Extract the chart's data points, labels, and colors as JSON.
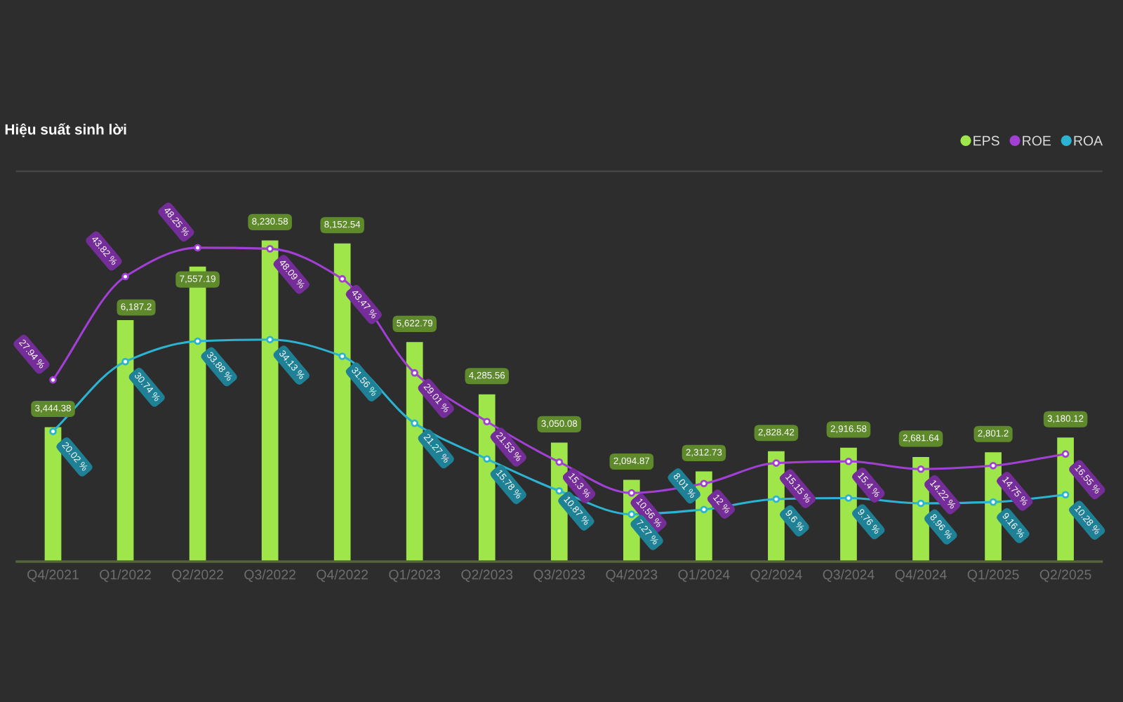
{
  "chart_data": {
    "type": "bar",
    "title": "Hiệu suất sinh lời",
    "categories": [
      "Q4/2021",
      "Q1/2022",
      "Q2/2022",
      "Q3/2022",
      "Q4/2022",
      "Q1/2023",
      "Q2/2023",
      "Q3/2023",
      "Q4/2023",
      "Q1/2024",
      "Q2/2024",
      "Q3/2024",
      "Q4/2024",
      "Q1/2025",
      "Q2/2025"
    ],
    "series": [
      {
        "name": "EPS",
        "color": "#9fe64a",
        "values": [
          3444.38,
          6187.2,
          7557.19,
          8230.58,
          8152.54,
          5622.79,
          4285.56,
          3050.08,
          2094.87,
          2312.73,
          2828.42,
          2916.58,
          2681.64,
          2801.2,
          3180.12
        ],
        "value_labels": [
          "3,444.38",
          "6,187.2",
          "7,557.19",
          "8,230.58",
          "8,152.54",
          "5,622.79",
          "4,285.56",
          "3,050.08",
          "2,094.87",
          "2,312.73",
          "2,828.42",
          "2,916.58",
          "2,681.64",
          "2,801.2",
          "3,180.12"
        ]
      },
      {
        "name": "ROE",
        "type": "line",
        "axis": "y2",
        "color": "#a23fd4",
        "values": [
          27.94,
          43.82,
          48.25,
          48.09,
          43.47,
          29.01,
          21.53,
          15.3,
          10.56,
          12,
          15.15,
          15.4,
          14.22,
          14.75,
          16.55
        ],
        "value_labels": [
          "27.94 %",
          "43.82 %",
          "48.25 %",
          "48.09 %",
          "43.47 %",
          "29.01 %",
          "21.53 %",
          "15.3 %",
          "10.56 %",
          "12 %",
          "15.15 %",
          "15.4 %",
          "14.22 %",
          "14.75 %",
          "16.55 %"
        ]
      },
      {
        "name": "ROA",
        "type": "line",
        "axis": "y2",
        "color": "#2bb3d1",
        "values": [
          20.02,
          30.74,
          33.88,
          34.13,
          31.56,
          21.27,
          15.78,
          10.87,
          7.27,
          8.01,
          9.6,
          9.76,
          8.96,
          9.16,
          10.28
        ],
        "value_labels": [
          "20.02 %",
          "30.74 %",
          "33.88 %",
          "34.13 %",
          "31.56 %",
          "21.27 %",
          "15.78 %",
          "10.87 %",
          "7.27 %",
          "8.01 %",
          "9.6 %",
          "9.76 %",
          "8.96 %",
          "9.16 %",
          "10.28 %"
        ]
      }
    ],
    "ylim": [
      0,
      10000
    ],
    "y2lim": [
      0,
      60
    ],
    "legend": "top right",
    "marker": "circle",
    "tick_labels": "x"
  }
}
